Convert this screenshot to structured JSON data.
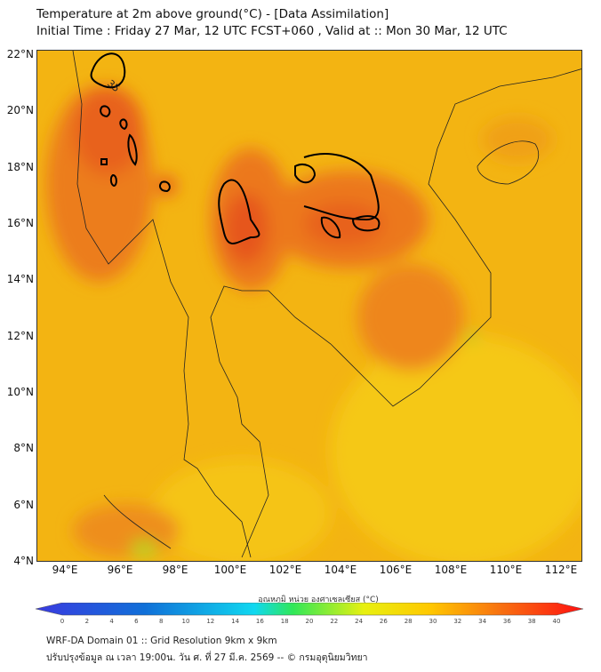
{
  "header": {
    "title": "Temperature at 2m above ground(°C) - [Data Assimilation]",
    "subtitle": "Initial Time : Friday 27 Mar, 12 UTC FCST+060 , Valid at :: Mon 30 Mar, 12 UTC"
  },
  "map": {
    "lat_labels": [
      "22°N",
      "20°N",
      "18°N",
      "16°N",
      "14°N",
      "12°N",
      "10°N",
      "8°N",
      "6°N",
      "4°N"
    ],
    "lon_labels": [
      "94°E",
      "96°E",
      "98°E",
      "100°E",
      "102°E",
      "104°E",
      "106°E",
      "108°E",
      "110°E",
      "112°E"
    ],
    "contour_label": "35",
    "colors": {
      "base": "#f3b412",
      "warm": "#ee8c1c",
      "hot": "#e8621a",
      "cool": "#f5d010"
    }
  },
  "colorbar": {
    "title": "อุณหภูมิ หน่วย องศาเซลเซียส (°C)",
    "min": 0,
    "max": 40,
    "ticks": [
      "0",
      "2",
      "4",
      "6",
      "8",
      "10",
      "12",
      "14",
      "16",
      "18",
      "20",
      "22",
      "24",
      "26",
      "28",
      "30",
      "32",
      "34",
      "36",
      "38",
      "40"
    ]
  },
  "footer": {
    "line1": "WRF-DA Domain 01 :: Grid Resolution 9km x 9km",
    "line2": "ปรับปรุงข้อมูล ณ เวลา 19:00น. วัน ศ. ที่ 27 มี.ค. 2569 -- © กรมอุตุนิยมวิทยา"
  }
}
